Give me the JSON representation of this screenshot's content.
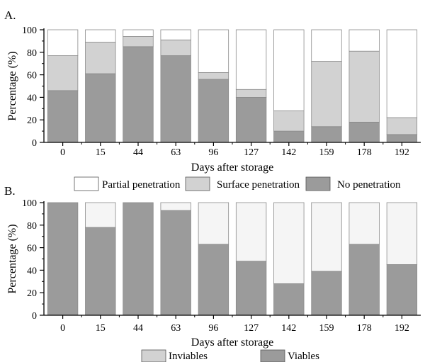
{
  "colors": {
    "no_penetration": "#9b9b9b",
    "surface_penetration": "#d2d2d2",
    "partial_penetration": "#ffffff",
    "viables": "#9b9b9b",
    "inviables": "#f5f5f5",
    "axis": "#000000",
    "bar_edge": "#8a8a8a"
  },
  "chart_data": [
    {
      "type": "bar",
      "stacked": true,
      "panel_label": "A.",
      "xlabel": "Days after storage",
      "ylabel": "Percentage (%)",
      "ylim": [
        0,
        100
      ],
      "yticks": [
        0,
        20,
        40,
        60,
        80,
        100
      ],
      "categories": [
        "0",
        "15",
        "44",
        "63",
        "96",
        "127",
        "142",
        "159",
        "178",
        "192"
      ],
      "legend_placement": "bottom",
      "series": [
        {
          "name": "No penetration",
          "color_key": "no_penetration",
          "values": [
            46,
            61,
            85,
            77,
            56,
            40,
            10,
            14,
            18,
            7
          ]
        },
        {
          "name": "Surface penetration",
          "color_key": "surface_penetration",
          "values": [
            31,
            28,
            9,
            14,
            6,
            7,
            18,
            58,
            63,
            15
          ]
        },
        {
          "name": "Partial penetration",
          "color_key": "partial_penetration",
          "values": [
            23,
            11,
            6,
            9,
            38,
            53,
            72,
            28,
            19,
            78
          ]
        }
      ],
      "legend_order": [
        "Partial penetration",
        "Surface penetration",
        "No penetration"
      ]
    },
    {
      "type": "bar",
      "stacked": true,
      "panel_label": "B.",
      "xlabel": "Days after storage",
      "ylabel": "Percentage (%)",
      "ylim": [
        0,
        100
      ],
      "yticks": [
        0,
        20,
        40,
        60,
        80,
        100
      ],
      "categories": [
        "0",
        "15",
        "44",
        "63",
        "96",
        "127",
        "142",
        "159",
        "178",
        "192"
      ],
      "legend_placement": "bottom",
      "series": [
        {
          "name": "Viables",
          "color_key": "viables",
          "values": [
            100,
            78,
            100,
            93,
            63,
            48,
            28,
            39,
            63,
            45
          ]
        },
        {
          "name": "Inviables",
          "color_key": "inviables",
          "values": [
            0,
            22,
            0,
            7,
            37,
            52,
            72,
            61,
            37,
            55
          ]
        }
      ],
      "legend_order": [
        "Inviables",
        "Viables"
      ],
      "legend_swatch_keys": {
        "Inviables": "surface_penetration",
        "Viables": "viables"
      }
    }
  ]
}
